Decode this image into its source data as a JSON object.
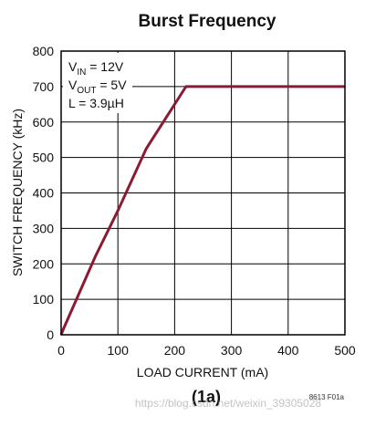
{
  "chart_data": {
    "type": "line",
    "title": "Burst Frequency",
    "xlabel": "LOAD CURRENT (mA)",
    "ylabel": "SWITCH FREQUENCY (kHz)",
    "xlim": [
      0,
      500
    ],
    "ylim": [
      0,
      800
    ],
    "x_ticks": [
      0,
      100,
      200,
      300,
      400,
      500
    ],
    "y_ticks": [
      0,
      100,
      200,
      300,
      400,
      500,
      600,
      700,
      800
    ],
    "grid": true,
    "series": [
      {
        "x": [
          0,
          5,
          60,
          100,
          150,
          220,
          500
        ],
        "y": [
          0,
          20,
          220,
          350,
          525,
          700,
          700
        ],
        "color": "#8b1a33"
      }
    ],
    "annotation_lines": [
      {
        "main": "V",
        "sub": "IN",
        "rest": " = 12V"
      },
      {
        "main": "V",
        "sub": "OUT",
        "rest": " = 5V"
      },
      {
        "main": "L = 3.9µH",
        "sub": "",
        "rest": ""
      }
    ],
    "figure_id": "8613 F01a",
    "caption": "(1a)",
    "watermark": "https://blog.csdn.net/weixin_39305028"
  }
}
